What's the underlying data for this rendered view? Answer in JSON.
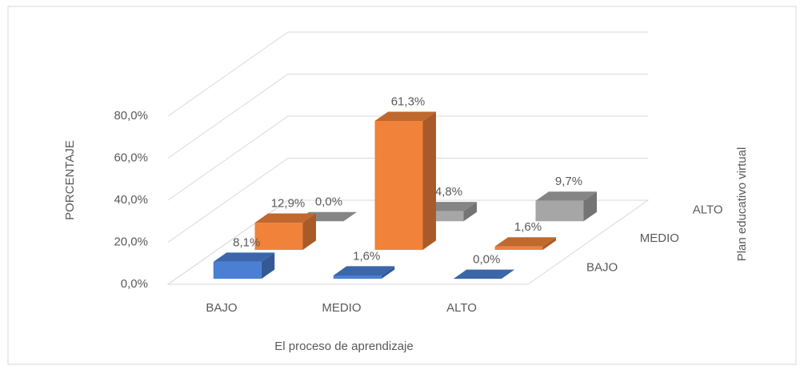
{
  "chart_data": {
    "type": "bar3d",
    "y_label": "PORCENTAJE",
    "x_label": "El proceso de aprendizaje",
    "z_label": "Plan educativo virtual",
    "categories": [
      "BAJO",
      "MEDIO",
      "ALTO"
    ],
    "series": [
      {
        "name": "BAJO",
        "color": "#4a7fd4",
        "values": [
          8.1,
          1.6,
          0.0
        ],
        "value_labels": [
          "8,1%",
          "1,6%",
          "0,0%"
        ]
      },
      {
        "name": "MEDIO",
        "color": "#f0823a",
        "values": [
          12.9,
          61.3,
          1.6
        ],
        "value_labels": [
          "12,9%",
          "61,3%",
          "1,6%"
        ]
      },
      {
        "name": "ALTO",
        "color": "#a6a6a6",
        "values": [
          0.0,
          4.8,
          9.7
        ],
        "value_labels": [
          "0,0%",
          "4,8%",
          "9,7%"
        ]
      }
    ],
    "ylim": [
      0,
      80
    ],
    "yticks": [
      {
        "value": 0,
        "label": "0,0%"
      },
      {
        "value": 20,
        "label": "20,0%"
      },
      {
        "value": 40,
        "label": "40,0%"
      },
      {
        "value": 60,
        "label": "60,0%"
      },
      {
        "value": 80,
        "label": "80,0%"
      }
    ],
    "grid": true
  }
}
